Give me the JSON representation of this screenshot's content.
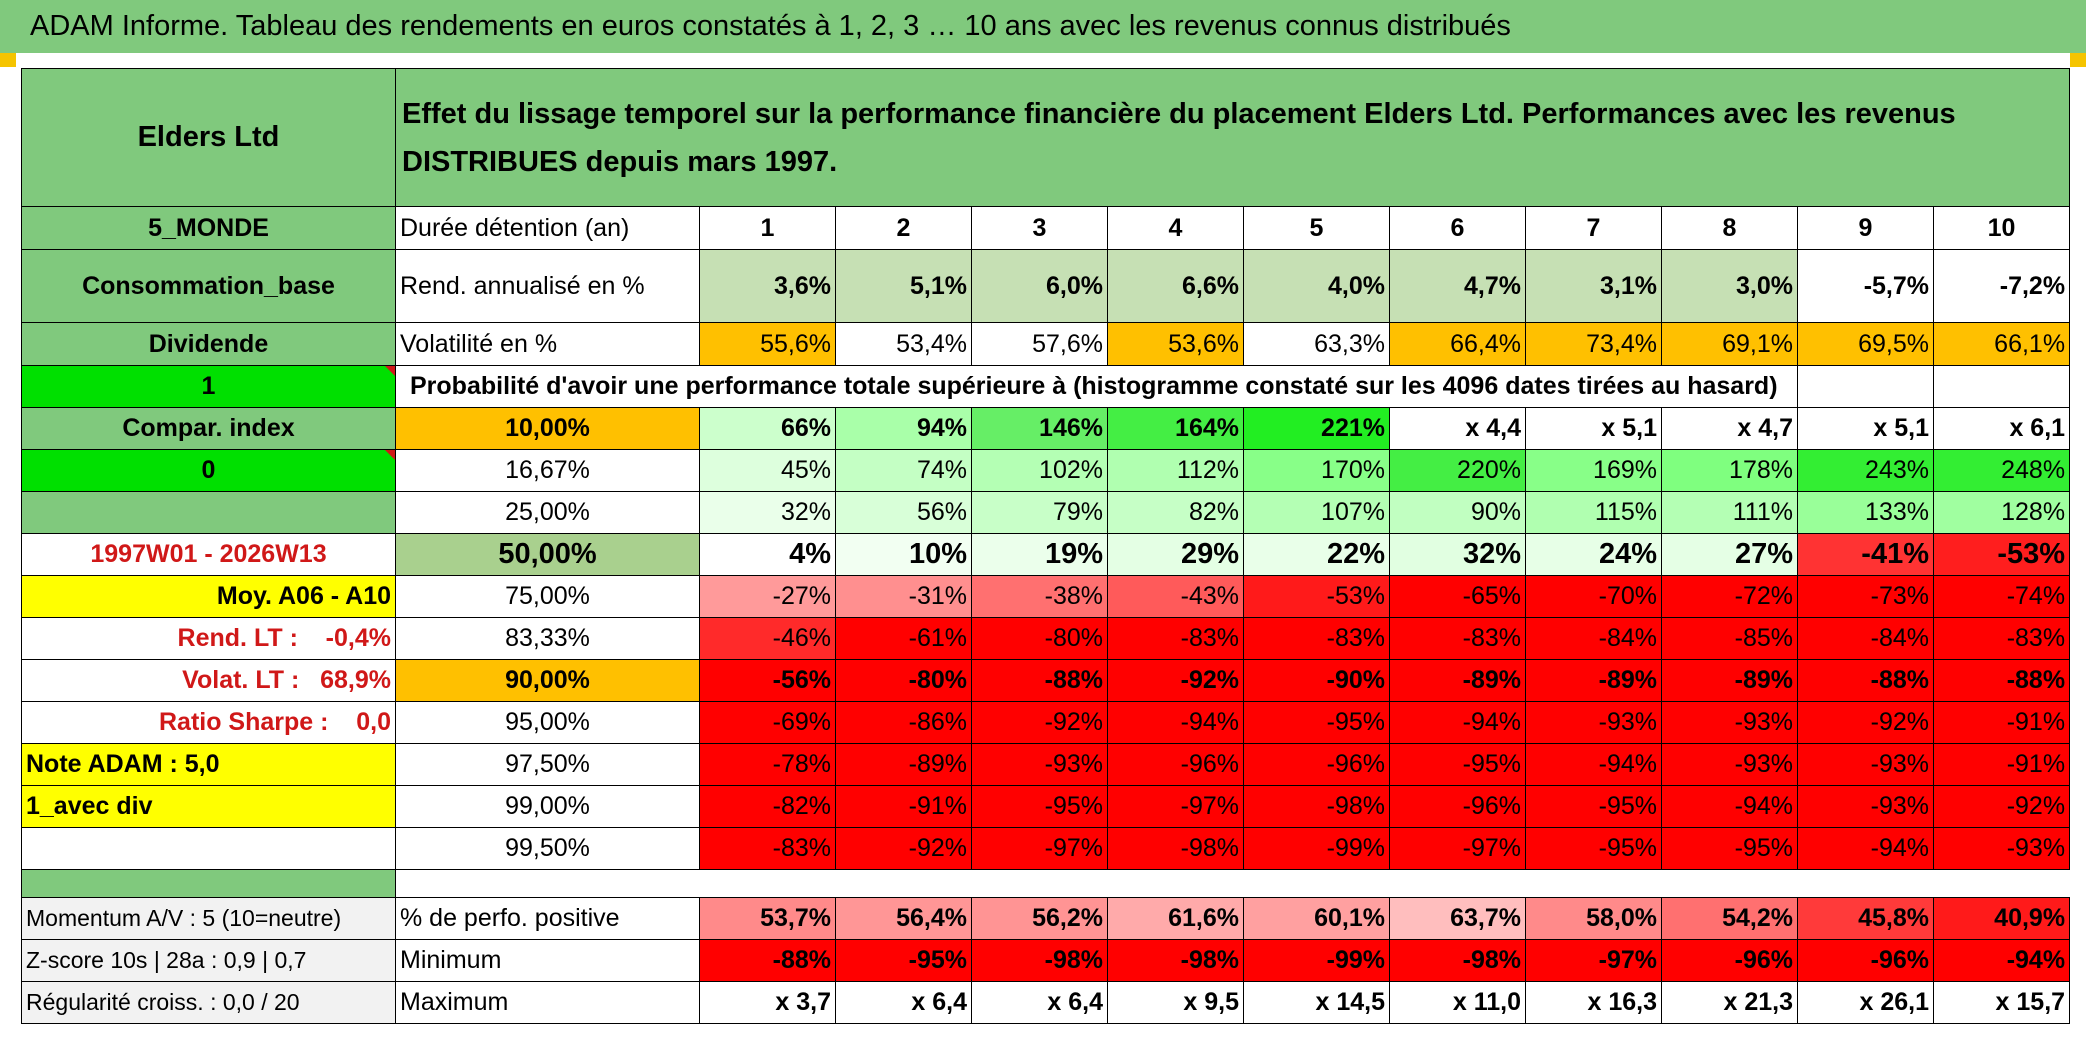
{
  "title": "ADAM Informe. Tableau des rendements en euros constatés à 1, 2, 3 … 10 ans avec les revenus connus distribués",
  "colors": {
    "header_green": "#80c97d",
    "bright_green": "#00e000",
    "yellow": "#ffff00",
    "orange": "#ffc000",
    "red": "#ff0000",
    "text_red": "#d01818"
  },
  "fund": {
    "name": "Elders Ltd",
    "description": "Effet du lissage temporel sur la performance financière du placement Elders Ltd. Performances avec les revenus DISTRIBUES depuis mars 1997."
  },
  "sidebar": {
    "region": "5_MONDE",
    "category": "Consommation_base",
    "income": "Dividende",
    "selector_1": "1",
    "compar_index": "Compar. index",
    "selector_0": "0",
    "period": "1997W01 - 2026W13",
    "avg_label": "Moy. A06 - A10",
    "rend_lt": "Rend. LT :    -0,4%",
    "volat_lt": "Volat. LT :   68,9%",
    "sharpe": "Ratio Sharpe :    0,0",
    "note": "Note ADAM : 5,0",
    "mode": "1_avec div",
    "momentum": "Momentum A/V : 5 (10=neutre)",
    "zscore": "Z-score 10s | 28a : 0,9 | 0,7",
    "regularity": "Régularité croiss. : 0,0 / 20"
  },
  "table": {
    "duration_label": "Durée détention (an)",
    "years": [
      "1",
      "2",
      "3",
      "4",
      "5",
      "6",
      "7",
      "8",
      "9",
      "10"
    ],
    "rend_label": "Rend. annualisé en %",
    "rend": [
      "3,6%",
      "5,1%",
      "6,0%",
      "6,6%",
      "4,0%",
      "4,7%",
      "3,1%",
      "3,0%",
      "-5,7%",
      "-7,2%"
    ],
    "vol_label": "Volatilité en %",
    "vol": [
      "55,6%",
      "53,4%",
      "57,6%",
      "53,6%",
      "63,3%",
      "66,4%",
      "73,4%",
      "69,1%",
      "69,5%",
      "66,1%"
    ],
    "prob_header": "Probabilité d'avoir une performance totale supérieure à (histogramme constaté sur les 4096 dates tirées au hasard)",
    "prob_rows": [
      {
        "p": "10,00%",
        "values": [
          "66%",
          "94%",
          "146%",
          "164%",
          "221%",
          "x 4,4",
          "x 5,1",
          "x 4,7",
          "x 5,1",
          "x 6,1"
        ]
      },
      {
        "p": "16,67%",
        "values": [
          "45%",
          "74%",
          "102%",
          "112%",
          "170%",
          "220%",
          "169%",
          "178%",
          "243%",
          "248%"
        ]
      },
      {
        "p": "25,00%",
        "values": [
          "32%",
          "56%",
          "79%",
          "82%",
          "107%",
          "90%",
          "115%",
          "111%",
          "133%",
          "128%"
        ]
      },
      {
        "p": "50,00%",
        "values": [
          "4%",
          "10%",
          "19%",
          "29%",
          "22%",
          "32%",
          "24%",
          "27%",
          "-41%",
          "-53%"
        ]
      },
      {
        "p": "75,00%",
        "values": [
          "-27%",
          "-31%",
          "-38%",
          "-43%",
          "-53%",
          "-65%",
          "-70%",
          "-72%",
          "-73%",
          "-74%"
        ]
      },
      {
        "p": "83,33%",
        "values": [
          "-46%",
          "-61%",
          "-80%",
          "-83%",
          "-83%",
          "-83%",
          "-84%",
          "-85%",
          "-84%",
          "-83%"
        ]
      },
      {
        "p": "90,00%",
        "values": [
          "-56%",
          "-80%",
          "-88%",
          "-92%",
          "-90%",
          "-89%",
          "-89%",
          "-89%",
          "-88%",
          "-88%"
        ]
      },
      {
        "p": "95,00%",
        "values": [
          "-69%",
          "-86%",
          "-92%",
          "-94%",
          "-95%",
          "-94%",
          "-93%",
          "-93%",
          "-92%",
          "-91%"
        ]
      },
      {
        "p": "97,50%",
        "values": [
          "-78%",
          "-89%",
          "-93%",
          "-96%",
          "-96%",
          "-95%",
          "-94%",
          "-93%",
          "-93%",
          "-91%"
        ]
      },
      {
        "p": "99,00%",
        "values": [
          "-82%",
          "-91%",
          "-95%",
          "-97%",
          "-98%",
          "-96%",
          "-95%",
          "-94%",
          "-93%",
          "-92%"
        ]
      },
      {
        "p": "99,50%",
        "values": [
          "-83%",
          "-92%",
          "-97%",
          "-98%",
          "-99%",
          "-97%",
          "-95%",
          "-95%",
          "-94%",
          "-93%"
        ]
      }
    ],
    "positive_label": "% de perfo. positive",
    "positive": [
      "53,7%",
      "56,4%",
      "56,2%",
      "61,6%",
      "60,1%",
      "63,7%",
      "58,0%",
      "54,2%",
      "45,8%",
      "40,9%"
    ],
    "min_label": "Minimum",
    "min": [
      "-88%",
      "-95%",
      "-98%",
      "-98%",
      "-99%",
      "-98%",
      "-97%",
      "-96%",
      "-96%",
      "-94%"
    ],
    "max_label": "Maximum",
    "max": [
      "x 3,7",
      "x 6,4",
      "x 6,4",
      "x 9,5",
      "x 14,5",
      "x 11,0",
      "x 16,3",
      "x 21,3",
      "x 26,1",
      "x 15,7"
    ],
    "cell_colors": {
      "rend": [
        "#c6e0b4",
        "#c6e0b4",
        "#c6e0b4",
        "#c6e0b4",
        "#c6e0b4",
        "#c6e0b4",
        "#c6e0b4",
        "#c6e0b4",
        "#ffffff",
        "#ffffff"
      ],
      "vol": [
        "#ffc000",
        "#ffffff",
        "#ffffff",
        "#ffc000",
        "#ffffff",
        "#ffc000",
        "#ffc000",
        "#ffc000",
        "#ffc000",
        "#ffc000"
      ],
      "prob": [
        [
          "#ccffcc",
          "#a9ffa9",
          "#66ee66",
          "#44ee44",
          "#22ee22",
          "#ffffff",
          "#ffffff",
          "#ffffff",
          "#ffffff",
          "#ffffff"
        ],
        [
          "#ddffdd",
          "#c4ffc4",
          "#b4ffb4",
          "#b0ffb0",
          "#88ff88",
          "#44ee44",
          "#88ff88",
          "#7fff7f",
          "#33ee33",
          "#33ee33"
        ],
        [
          "#eaffea",
          "#d8ffd8",
          "#c8ffc8",
          "#c6ffc6",
          "#b4ffb4",
          "#c1ffc1",
          "#b0ffb0",
          "#b4ffb4",
          "#99ff99",
          "#a0ffa0"
        ],
        [
          "#ffffff",
          "#f2fff2",
          "#ebffeb",
          "#e4ffe4",
          "#e9ffe9",
          "#e1ffe1",
          "#e7ffe7",
          "#e5ffe5",
          "#ff3333",
          "#ff1e1e"
        ],
        [
          "#ff9a9a",
          "#ff8f8f",
          "#ff7070",
          "#ff5a5a",
          "#ff1a1a",
          "#ff0000",
          "#ff0000",
          "#ff0000",
          "#ff0000",
          "#ff0000"
        ],
        [
          "#ff2a2a",
          "#ff0000",
          "#ff0000",
          "#ff0000",
          "#ff0000",
          "#ff0000",
          "#ff0000",
          "#ff0000",
          "#ff0000",
          "#ff0000"
        ],
        [
          "#ff0000",
          "#ff0000",
          "#ff0000",
          "#ff0000",
          "#ff0000",
          "#ff0000",
          "#ff0000",
          "#ff0000",
          "#ff0000",
          "#ff0000"
        ],
        [
          "#ff0000",
          "#ff0000",
          "#ff0000",
          "#ff0000",
          "#ff0000",
          "#ff0000",
          "#ff0000",
          "#ff0000",
          "#ff0000",
          "#ff0000"
        ],
        [
          "#ff0000",
          "#ff0000",
          "#ff0000",
          "#ff0000",
          "#ff0000",
          "#ff0000",
          "#ff0000",
          "#ff0000",
          "#ff0000",
          "#ff0000"
        ],
        [
          "#ff0000",
          "#ff0000",
          "#ff0000",
          "#ff0000",
          "#ff0000",
          "#ff0000",
          "#ff0000",
          "#ff0000",
          "#ff0000",
          "#ff0000"
        ],
        [
          "#ff0000",
          "#ff0000",
          "#ff0000",
          "#ff0000",
          "#ff0000",
          "#ff0000",
          "#ff0000",
          "#ff0000",
          "#ff0000",
          "#ff0000"
        ]
      ],
      "positive": [
        "#ff8a8a",
        "#ff9696",
        "#ff9494",
        "#ffaaaa",
        "#ffa0a0",
        "#ffbebe",
        "#ff8a8a",
        "#ff7070",
        "#ff3a3a",
        "#ff1a1a"
      ],
      "min": [
        "#ff0000",
        "#ff0000",
        "#ff0000",
        "#ff0000",
        "#ff0000",
        "#ff0000",
        "#ff0000",
        "#ff0000",
        "#ff0000",
        "#ff0000"
      ],
      "max": [
        "#ffffff",
        "#ffffff",
        "#ffffff",
        "#ffffff",
        "#ffffff",
        "#ffffff",
        "#ffffff",
        "#ffffff",
        "#ffffff",
        "#ffffff"
      ]
    }
  }
}
